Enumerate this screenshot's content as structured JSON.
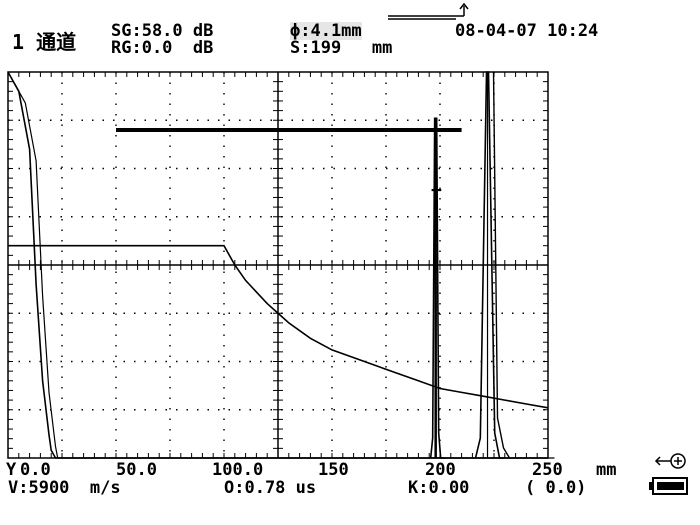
{
  "header": {
    "channel": "1 通道",
    "sg": "SG:58.0 dB",
    "rg": "RG:0.0  dB",
    "phi": "ϕ:4.1mm",
    "s_value": "S:199   mm",
    "datetime": "08-04-07 10:24"
  },
  "footer": {
    "y_label": "Y",
    "x_ticks": [
      "0.0",
      "50.0",
      "100.0",
      "150",
      "200",
      "250"
    ],
    "unit": "mm",
    "velocity": "V:5900  m/s",
    "offset": "O:0.78 us",
    "k_value": "K:0.00",
    "k_paren": "( 0.0)"
  },
  "icons": {
    "top": "probe-arrow-icon",
    "side": "probe-connector-icon",
    "battery": "battery-icon"
  },
  "chart_data": {
    "type": "line",
    "xlabel": "mm",
    "xlim": [
      0,
      250
    ],
    "x_ticks": [
      0,
      50,
      100,
      150,
      200,
      250
    ],
    "gate_bar": {
      "start": 50,
      "end": 210
    },
    "marker": {
      "x": 200,
      "label": "+"
    },
    "series": [
      {
        "x": [
          0,
          5,
          10,
          13,
          16,
          19,
          20,
          22,
          25,
          27,
          30,
          40,
          60,
          90,
          100,
          101,
          105,
          110,
          120,
          130,
          150,
          170,
          190,
          200,
          215,
          230,
          250
        ],
        "y": [
          100,
          95,
          80,
          45,
          20,
          6,
          2,
          0,
          0,
          0,
          0,
          0,
          0,
          0,
          0,
          0,
          0,
          0,
          0,
          0,
          0,
          0,
          0,
          0,
          0,
          0,
          0
        ]
      }
    ],
    "peaks": [
      {
        "x": 198,
        "height": 88
      },
      {
        "x": 222,
        "height": 100
      }
    ],
    "dac_curve": {
      "x": [
        0,
        100,
        105,
        110,
        120,
        130,
        140,
        150,
        160,
        170,
        180,
        190,
        200,
        210,
        220,
        230,
        240,
        250
      ],
      "y": [
        55,
        55,
        50,
        46,
        40,
        35,
        31,
        28,
        26,
        24,
        22,
        20,
        18,
        17,
        16,
        15,
        14,
        13
      ]
    }
  }
}
